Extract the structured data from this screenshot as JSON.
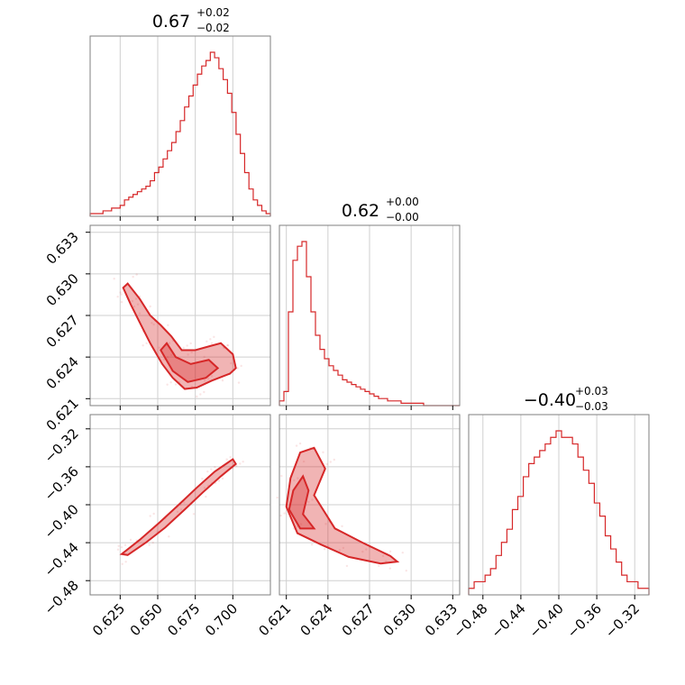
{
  "chart_data": {
    "type": "corner",
    "color": "#d62728",
    "parameters": [
      {
        "title_value": "0.67",
        "plus": "+0.02",
        "minus": "−0.02"
      },
      {
        "title_value": "0.62",
        "plus": "+0.00",
        "minus": "−0.00"
      },
      {
        "title_value": "−0.40",
        "plus": "+0.03",
        "minus": "−0.03"
      }
    ],
    "axes": {
      "p0": {
        "range": [
          0.605,
          0.725
        ],
        "ticks": [
          0.625,
          0.65,
          0.675,
          0.7
        ],
        "tick_labels": [
          "0.625",
          "0.650",
          "0.675",
          "0.700"
        ]
      },
      "p1": {
        "range": [
          0.6205,
          0.6335
        ],
        "ticks": [
          0.621,
          0.624,
          0.627,
          0.63,
          0.633
        ],
        "tick_labels": [
          "0.621",
          "0.624",
          "0.627",
          "0.630",
          "0.633"
        ]
      },
      "p2": {
        "range": [
          -0.495,
          -0.305
        ],
        "ticks": [
          -0.48,
          -0.44,
          -0.4,
          -0.36,
          -0.32
        ],
        "tick_labels": [
          "−0.48",
          "−0.44",
          "−0.40",
          "−0.36",
          "−0.32"
        ]
      }
    },
    "histograms": [
      {
        "param": "p0",
        "counts": [
          1,
          1,
          1,
          2,
          2,
          3,
          3,
          4,
          6,
          7,
          8,
          9,
          10,
          11,
          13,
          16,
          18,
          21,
          24,
          27,
          31,
          35,
          40,
          44,
          48,
          52,
          55,
          57,
          60,
          58,
          54,
          50,
          45,
          38,
          30,
          23,
          16,
          10,
          6,
          4,
          2,
          1
        ]
      },
      {
        "param": "p1",
        "counts": [
          2,
          6,
          40,
          62,
          68,
          70,
          55,
          40,
          30,
          24,
          20,
          17,
          15,
          13,
          11,
          10,
          9,
          8,
          7,
          6,
          5,
          4,
          3,
          3,
          2,
          2,
          2,
          1,
          1,
          1,
          1,
          1,
          0,
          0,
          0,
          0,
          0,
          0,
          0,
          0
        ]
      },
      {
        "param": "p2",
        "counts": [
          1,
          2,
          2,
          3,
          4,
          6,
          8,
          10,
          13,
          15,
          18,
          20,
          21,
          22,
          23,
          24,
          25,
          24,
          24,
          23,
          21,
          19,
          17,
          14,
          12,
          9,
          7,
          5,
          3,
          2,
          2,
          1,
          1
        ]
      }
    ],
    "pair_p0_p1": {
      "contour_outer": [
        [
          0.627,
          0.629
        ],
        [
          0.632,
          0.6278
        ],
        [
          0.638,
          0.6265
        ],
        [
          0.645,
          0.625
        ],
        [
          0.653,
          0.6235
        ],
        [
          0.66,
          0.6225
        ],
        [
          0.668,
          0.6217
        ],
        [
          0.676,
          0.6218
        ],
        [
          0.686,
          0.6223
        ],
        [
          0.698,
          0.6228
        ],
        [
          0.702,
          0.6232
        ],
        [
          0.7,
          0.6242
        ],
        [
          0.692,
          0.625
        ],
        [
          0.685,
          0.6248
        ],
        [
          0.675,
          0.6245
        ],
        [
          0.666,
          0.6245
        ],
        [
          0.659,
          0.6255
        ],
        [
          0.652,
          0.6263
        ],
        [
          0.645,
          0.627
        ],
        [
          0.638,
          0.6282
        ],
        [
          0.63,
          0.6293
        ]
      ],
      "contour_inner": [
        [
          0.652,
          0.6245
        ],
        [
          0.66,
          0.623
        ],
        [
          0.67,
          0.6222
        ],
        [
          0.682,
          0.6225
        ],
        [
          0.69,
          0.6232
        ],
        [
          0.684,
          0.6238
        ],
        [
          0.672,
          0.6235
        ],
        [
          0.662,
          0.624
        ],
        [
          0.656,
          0.625
        ]
      ]
    },
    "pair_p0_p2": {
      "contour_outer": [
        [
          0.63,
          -0.453
        ],
        [
          0.642,
          -0.44
        ],
        [
          0.655,
          -0.424
        ],
        [
          0.668,
          -0.405
        ],
        [
          0.68,
          -0.387
        ],
        [
          0.692,
          -0.37
        ],
        [
          0.702,
          -0.357
        ],
        [
          0.7,
          -0.352
        ],
        [
          0.688,
          -0.365
        ],
        [
          0.676,
          -0.382
        ],
        [
          0.664,
          -0.4
        ],
        [
          0.651,
          -0.419
        ],
        [
          0.638,
          -0.437
        ],
        [
          0.626,
          -0.452
        ]
      ]
    },
    "pair_p1_p2": {
      "contour_outer": [
        [
          0.621,
          -0.402
        ],
        [
          0.6213,
          -0.372
        ],
        [
          0.622,
          -0.345
        ],
        [
          0.623,
          -0.34
        ],
        [
          0.6238,
          -0.362
        ],
        [
          0.623,
          -0.39
        ],
        [
          0.6245,
          -0.425
        ],
        [
          0.6265,
          -0.44
        ],
        [
          0.6285,
          -0.454
        ],
        [
          0.629,
          -0.46
        ],
        [
          0.6278,
          -0.462
        ],
        [
          0.6255,
          -0.455
        ],
        [
          0.6235,
          -0.442
        ],
        [
          0.6218,
          -0.43
        ]
      ],
      "contour_inner": [
        [
          0.6212,
          -0.405
        ],
        [
          0.6215,
          -0.385
        ],
        [
          0.6222,
          -0.37
        ],
        [
          0.6226,
          -0.385
        ],
        [
          0.6222,
          -0.41
        ],
        [
          0.623,
          -0.425
        ],
        [
          0.622,
          -0.425
        ]
      ]
    }
  }
}
